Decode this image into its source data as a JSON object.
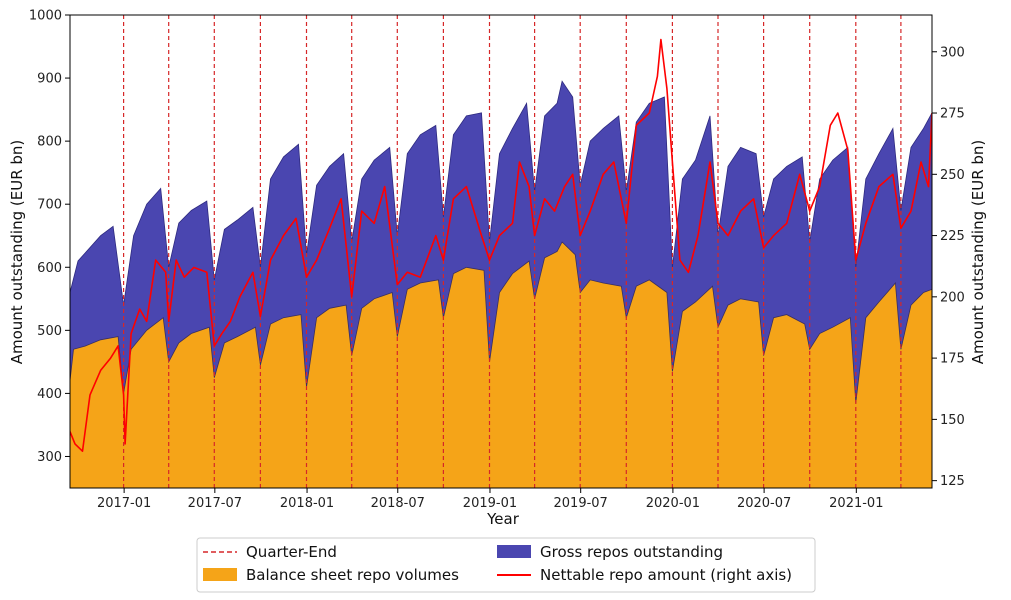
{
  "chart_data": {
    "type": "area",
    "xlabel": "Year",
    "ylabel": "Amount outstanding (EUR bn)",
    "ylabel_right": "Amount outstanding (EUR bn)",
    "x_range": [
      "2016-09-15",
      "2021-06-01"
    ],
    "y_range_left": [
      250,
      1000
    ],
    "y_range_right": [
      122,
      315
    ],
    "x_ticks": [
      "2017-01",
      "2017-07",
      "2018-01",
      "2018-07",
      "2019-01",
      "2019-07",
      "2020-01",
      "2020-07",
      "2021-01"
    ],
    "y_ticks_left": [
      300,
      400,
      500,
      600,
      700,
      800,
      900,
      1000
    ],
    "y_ticks_right": [
      125,
      150,
      175,
      200,
      225,
      250,
      275,
      300
    ],
    "quarter_ends": [
      "2016-12-31",
      "2017-03-31",
      "2017-06-30",
      "2017-09-30",
      "2017-12-31",
      "2018-03-31",
      "2018-06-30",
      "2018-09-30",
      "2018-12-31",
      "2019-03-31",
      "2019-06-30",
      "2019-09-30",
      "2019-12-31",
      "2020-03-31",
      "2020-06-30",
      "2020-09-30",
      "2020-12-31",
      "2021-03-31"
    ],
    "series": [
      {
        "name": "Gross repos outstanding",
        "axis": "left",
        "color": "#4a46b0",
        "points": [
          [
            "2016-09-15",
            560
          ],
          [
            "2016-10-01",
            610
          ],
          [
            "2016-11-15",
            650
          ],
          [
            "2016-12-10",
            665
          ],
          [
            "2016-12-31",
            540
          ],
          [
            "2017-01-20",
            650
          ],
          [
            "2017-02-15",
            700
          ],
          [
            "2017-03-15",
            725
          ],
          [
            "2017-03-31",
            600
          ],
          [
            "2017-04-20",
            670
          ],
          [
            "2017-05-15",
            690
          ],
          [
            "2017-06-15",
            705
          ],
          [
            "2017-06-30",
            580
          ],
          [
            "2017-07-20",
            660
          ],
          [
            "2017-08-15",
            675
          ],
          [
            "2017-09-15",
            695
          ],
          [
            "2017-09-30",
            600
          ],
          [
            "2017-10-20",
            740
          ],
          [
            "2017-11-15",
            775
          ],
          [
            "2017-12-15",
            795
          ],
          [
            "2017-12-31",
            620
          ],
          [
            "2018-01-20",
            730
          ],
          [
            "2018-02-15",
            760
          ],
          [
            "2018-03-15",
            780
          ],
          [
            "2018-03-31",
            640
          ],
          [
            "2018-04-20",
            740
          ],
          [
            "2018-05-15",
            770
          ],
          [
            "2018-06-15",
            790
          ],
          [
            "2018-06-30",
            650
          ],
          [
            "2018-07-20",
            780
          ],
          [
            "2018-08-15",
            810
          ],
          [
            "2018-09-15",
            825
          ],
          [
            "2018-09-30",
            680
          ],
          [
            "2018-10-20",
            810
          ],
          [
            "2018-11-15",
            840
          ],
          [
            "2018-12-15",
            845
          ],
          [
            "2018-12-31",
            640
          ],
          [
            "2019-01-20",
            780
          ],
          [
            "2019-02-15",
            820
          ],
          [
            "2019-03-15",
            860
          ],
          [
            "2019-03-31",
            720
          ],
          [
            "2019-04-20",
            840
          ],
          [
            "2019-05-15",
            860
          ],
          [
            "2019-05-25",
            895
          ],
          [
            "2019-06-15",
            870
          ],
          [
            "2019-06-30",
            730
          ],
          [
            "2019-07-20",
            800
          ],
          [
            "2019-08-15",
            820
          ],
          [
            "2019-09-15",
            840
          ],
          [
            "2019-09-30",
            720
          ],
          [
            "2019-10-20",
            830
          ],
          [
            "2019-11-15",
            860
          ],
          [
            "2019-12-15",
            870
          ],
          [
            "2019-12-31",
            600
          ],
          [
            "2020-01-20",
            740
          ],
          [
            "2020-02-15",
            770
          ],
          [
            "2020-03-15",
            840
          ],
          [
            "2020-03-31",
            650
          ],
          [
            "2020-04-20",
            760
          ],
          [
            "2020-05-15",
            790
          ],
          [
            "2020-06-15",
            780
          ],
          [
            "2020-06-30",
            680
          ],
          [
            "2020-07-20",
            740
          ],
          [
            "2020-08-15",
            760
          ],
          [
            "2020-09-15",
            775
          ],
          [
            "2020-09-30",
            640
          ],
          [
            "2020-10-20",
            740
          ],
          [
            "2020-11-15",
            770
          ],
          [
            "2020-12-15",
            790
          ],
          [
            "2020-12-31",
            600
          ],
          [
            "2021-01-20",
            740
          ],
          [
            "2021-02-15",
            780
          ],
          [
            "2021-03-15",
            820
          ],
          [
            "2021-03-31",
            690
          ],
          [
            "2021-04-20",
            790
          ],
          [
            "2021-05-15",
            820
          ],
          [
            "2021-06-01",
            845
          ]
        ]
      },
      {
        "name": "Balance sheet repo volumes",
        "axis": "left",
        "color": "#f5a418",
        "points": [
          [
            "2016-09-15",
            420
          ],
          [
            "2016-09-22",
            470
          ],
          [
            "2016-10-15",
            475
          ],
          [
            "2016-11-15",
            485
          ],
          [
            "2016-12-20",
            490
          ],
          [
            "2016-12-31",
            400
          ],
          [
            "2017-01-15",
            470
          ],
          [
            "2017-02-15",
            500
          ],
          [
            "2017-03-20",
            520
          ],
          [
            "2017-03-31",
            450
          ],
          [
            "2017-04-20",
            480
          ],
          [
            "2017-05-15",
            495
          ],
          [
            "2017-06-20",
            505
          ],
          [
            "2017-06-30",
            425
          ],
          [
            "2017-07-20",
            480
          ],
          [
            "2017-08-15",
            490
          ],
          [
            "2017-09-20",
            505
          ],
          [
            "2017-09-30",
            445
          ],
          [
            "2017-10-20",
            510
          ],
          [
            "2017-11-15",
            520
          ],
          [
            "2017-12-20",
            525
          ],
          [
            "2017-12-31",
            410
          ],
          [
            "2018-01-20",
            520
          ],
          [
            "2018-02-15",
            535
          ],
          [
            "2018-03-20",
            540
          ],
          [
            "2018-03-31",
            460
          ],
          [
            "2018-04-20",
            535
          ],
          [
            "2018-05-15",
            550
          ],
          [
            "2018-06-20",
            560
          ],
          [
            "2018-06-30",
            490
          ],
          [
            "2018-07-20",
            565
          ],
          [
            "2018-08-15",
            575
          ],
          [
            "2018-09-20",
            580
          ],
          [
            "2018-09-30",
            520
          ],
          [
            "2018-10-20",
            590
          ],
          [
            "2018-11-15",
            600
          ],
          [
            "2018-12-20",
            595
          ],
          [
            "2018-12-31",
            450
          ],
          [
            "2019-01-20",
            560
          ],
          [
            "2019-02-15",
            590
          ],
          [
            "2019-03-20",
            610
          ],
          [
            "2019-03-31",
            550
          ],
          [
            "2019-04-20",
            615
          ],
          [
            "2019-05-15",
            625
          ],
          [
            "2019-05-25",
            640
          ],
          [
            "2019-06-20",
            620
          ],
          [
            "2019-06-30",
            560
          ],
          [
            "2019-07-20",
            580
          ],
          [
            "2019-08-15",
            575
          ],
          [
            "2019-09-20",
            570
          ],
          [
            "2019-09-30",
            520
          ],
          [
            "2019-10-20",
            570
          ],
          [
            "2019-11-15",
            580
          ],
          [
            "2019-12-20",
            560
          ],
          [
            "2019-12-31",
            435
          ],
          [
            "2020-01-20",
            530
          ],
          [
            "2020-02-15",
            545
          ],
          [
            "2020-03-20",
            570
          ],
          [
            "2020-03-31",
            505
          ],
          [
            "2020-04-20",
            540
          ],
          [
            "2020-05-15",
            550
          ],
          [
            "2020-06-20",
            545
          ],
          [
            "2020-06-30",
            460
          ],
          [
            "2020-07-20",
            520
          ],
          [
            "2020-08-15",
            525
          ],
          [
            "2020-09-20",
            510
          ],
          [
            "2020-09-30",
            470
          ],
          [
            "2020-10-20",
            495
          ],
          [
            "2020-11-15",
            505
          ],
          [
            "2020-12-20",
            520
          ],
          [
            "2020-12-31",
            385
          ],
          [
            "2021-01-20",
            520
          ],
          [
            "2021-02-15",
            545
          ],
          [
            "2021-03-20",
            575
          ],
          [
            "2021-03-31",
            470
          ],
          [
            "2021-04-20",
            540
          ],
          [
            "2021-05-15",
            560
          ],
          [
            "2021-06-01",
            565
          ]
        ]
      },
      {
        "name": "Nettable repo amount (right axis)",
        "axis": "right",
        "color": "#ff0000",
        "points": [
          [
            "2016-09-15",
            145
          ],
          [
            "2016-09-25",
            140
          ],
          [
            "2016-10-10",
            137
          ],
          [
            "2016-10-25",
            160
          ],
          [
            "2016-11-15",
            170
          ],
          [
            "2016-12-05",
            175
          ],
          [
            "2016-12-20",
            180
          ],
          [
            "2016-12-31",
            160
          ],
          [
            "2017-01-03",
            140
          ],
          [
            "2017-01-15",
            185
          ],
          [
            "2017-02-01",
            195
          ],
          [
            "2017-02-15",
            190
          ],
          [
            "2017-03-05",
            215
          ],
          [
            "2017-03-25",
            210
          ],
          [
            "2017-03-31",
            190
          ],
          [
            "2017-04-15",
            215
          ],
          [
            "2017-05-01",
            208
          ],
          [
            "2017-05-20",
            212
          ],
          [
            "2017-06-15",
            210
          ],
          [
            "2017-06-30",
            180
          ],
          [
            "2017-07-15",
            185
          ],
          [
            "2017-08-01",
            190
          ],
          [
            "2017-08-20",
            200
          ],
          [
            "2017-09-15",
            210
          ],
          [
            "2017-09-30",
            192
          ],
          [
            "2017-10-20",
            215
          ],
          [
            "2017-11-15",
            225
          ],
          [
            "2017-12-10",
            232
          ],
          [
            "2017-12-25",
            215
          ],
          [
            "2017-12-31",
            208
          ],
          [
            "2018-01-20",
            215
          ],
          [
            "2018-02-15",
            228
          ],
          [
            "2018-03-10",
            240
          ],
          [
            "2018-03-31",
            200
          ],
          [
            "2018-04-20",
            235
          ],
          [
            "2018-05-15",
            230
          ],
          [
            "2018-06-05",
            245
          ],
          [
            "2018-06-30",
            205
          ],
          [
            "2018-07-20",
            210
          ],
          [
            "2018-08-15",
            208
          ],
          [
            "2018-09-15",
            225
          ],
          [
            "2018-09-30",
            215
          ],
          [
            "2018-10-20",
            240
          ],
          [
            "2018-11-15",
            245
          ],
          [
            "2018-12-15",
            225
          ],
          [
            "2018-12-31",
            215
          ],
          [
            "2019-01-20",
            225
          ],
          [
            "2019-02-15",
            230
          ],
          [
            "2019-03-01",
            255
          ],
          [
            "2019-03-20",
            245
          ],
          [
            "2019-03-31",
            225
          ],
          [
            "2019-04-20",
            240
          ],
          [
            "2019-05-10",
            235
          ],
          [
            "2019-05-30",
            245
          ],
          [
            "2019-06-15",
            250
          ],
          [
            "2019-06-30",
            225
          ],
          [
            "2019-07-20",
            235
          ],
          [
            "2019-08-15",
            250
          ],
          [
            "2019-09-05",
            255
          ],
          [
            "2019-09-30",
            230
          ],
          [
            "2019-10-20",
            270
          ],
          [
            "2019-11-15",
            275
          ],
          [
            "2019-12-01",
            290
          ],
          [
            "2019-12-08",
            305
          ],
          [
            "2019-12-20",
            285
          ],
          [
            "2019-12-31",
            255
          ],
          [
            "2020-01-15",
            215
          ],
          [
            "2020-02-01",
            210
          ],
          [
            "2020-02-20",
            225
          ],
          [
            "2020-03-15",
            255
          ],
          [
            "2020-03-31",
            230
          ],
          [
            "2020-04-20",
            225
          ],
          [
            "2020-05-15",
            235
          ],
          [
            "2020-06-10",
            240
          ],
          [
            "2020-06-30",
            220
          ],
          [
            "2020-07-20",
            225
          ],
          [
            "2020-08-15",
            230
          ],
          [
            "2020-09-10",
            250
          ],
          [
            "2020-09-30",
            235
          ],
          [
            "2020-10-20",
            245
          ],
          [
            "2020-11-10",
            270
          ],
          [
            "2020-11-25",
            275
          ],
          [
            "2020-12-15",
            260
          ],
          [
            "2020-12-31",
            215
          ],
          [
            "2021-01-20",
            230
          ],
          [
            "2021-02-15",
            245
          ],
          [
            "2021-03-15",
            250
          ],
          [
            "2021-03-31",
            228
          ],
          [
            "2021-04-20",
            235
          ],
          [
            "2021-05-10",
            255
          ],
          [
            "2021-05-25",
            245
          ],
          [
            "2021-06-01",
            275
          ]
        ]
      }
    ],
    "legend": {
      "placement": "bottom-center",
      "entries": [
        {
          "label": "Quarter-End",
          "color": "#d62728",
          "style": "dashed-line"
        },
        {
          "label": "Gross repos outstanding",
          "color": "#4a46b0",
          "style": "patch"
        },
        {
          "label": "Balance sheet repo volumes",
          "color": "#f5a418",
          "style": "patch"
        },
        {
          "label": "Nettable repo amount (right axis)",
          "color": "#ff0000",
          "style": "line"
        }
      ]
    }
  }
}
